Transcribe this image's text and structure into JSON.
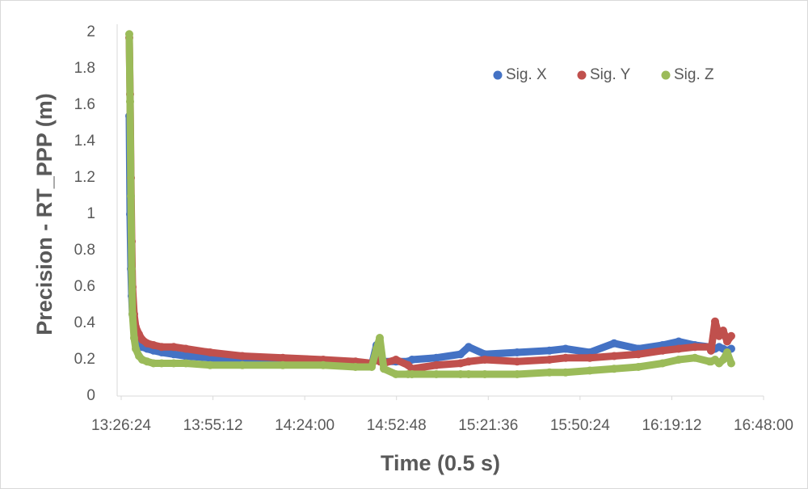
{
  "chart_data": {
    "type": "scatter",
    "x_label": "Time (0.5 s)",
    "y_label": "Precision - RT_PPP (m)",
    "x": [
      48536,
      48551,
      48567,
      48582,
      48597,
      48627,
      48658,
      48719,
      48780,
      48871,
      48993,
      49145,
      49373,
      49601,
      50058,
      50666,
      51427,
      52188,
      52796,
      53101,
      53192,
      53253,
      53329,
      53557,
      53785,
      53861,
      54318,
      54774,
      54926,
      55231,
      55839,
      56448,
      56752,
      57209,
      57665,
      58122,
      58578,
      58882,
      59187,
      59461,
      59491,
      59567,
      59643,
      59719,
      59795,
      59871
    ],
    "series": [
      {
        "name": "Sig. X",
        "color": "#4472c4",
        "values": [
          1.54,
          1.0,
          0.7,
          0.55,
          0.45,
          0.37,
          0.32,
          0.29,
          0.27,
          0.26,
          0.25,
          0.24,
          0.23,
          0.22,
          0.21,
          0.2,
          0.19,
          0.18,
          0.18,
          0.17,
          0.28,
          0.22,
          0.19,
          0.19,
          0.19,
          0.2,
          0.21,
          0.23,
          0.27,
          0.23,
          0.24,
          0.25,
          0.26,
          0.24,
          0.29,
          0.26,
          0.28,
          0.3,
          0.28,
          0.27,
          0.25,
          0.26,
          0.27,
          0.26,
          0.25,
          0.26
        ]
      },
      {
        "name": "Sig. Y",
        "color": "#c0504d",
        "values": [
          1.97,
          1.66,
          1.2,
          0.85,
          0.6,
          0.45,
          0.38,
          0.34,
          0.31,
          0.29,
          0.28,
          0.27,
          0.27,
          0.26,
          0.24,
          0.22,
          0.21,
          0.2,
          0.19,
          0.18,
          0.2,
          0.19,
          0.18,
          0.2,
          0.17,
          0.15,
          0.17,
          0.18,
          0.19,
          0.2,
          0.19,
          0.2,
          0.21,
          0.21,
          0.22,
          0.23,
          0.25,
          0.26,
          0.27,
          0.27,
          0.25,
          0.41,
          0.33,
          0.36,
          0.3,
          0.33
        ]
      },
      {
        "name": "Sig. Z",
        "color": "#9bbb59",
        "values": [
          1.99,
          1.62,
          1.1,
          0.7,
          0.45,
          0.32,
          0.26,
          0.22,
          0.2,
          0.19,
          0.18,
          0.18,
          0.18,
          0.18,
          0.17,
          0.17,
          0.17,
          0.17,
          0.16,
          0.16,
          0.26,
          0.32,
          0.15,
          0.12,
          0.12,
          0.12,
          0.12,
          0.12,
          0.12,
          0.12,
          0.12,
          0.13,
          0.13,
          0.14,
          0.15,
          0.16,
          0.18,
          0.2,
          0.21,
          0.19,
          0.19,
          0.2,
          0.18,
          0.2,
          0.24,
          0.18
        ]
      }
    ],
    "xlim": [
      48384,
      60480
    ],
    "xticks": [
      {
        "value": 48384,
        "label": "13:26:24"
      },
      {
        "value": 50112,
        "label": "13:55:12"
      },
      {
        "value": 51840,
        "label": "14:24:00"
      },
      {
        "value": 53568,
        "label": "14:52:48"
      },
      {
        "value": 55296,
        "label": "15:21:36"
      },
      {
        "value": 57024,
        "label": "15:50:24"
      },
      {
        "value": 58752,
        "label": "16:19:12"
      },
      {
        "value": 60480,
        "label": "16:48:00"
      }
    ],
    "ylim": [
      0,
      2
    ],
    "yticks": [
      0,
      0.2,
      0.4,
      0.6,
      0.8,
      1,
      1.2,
      1.4,
      1.6,
      1.8,
      2
    ],
    "legend": "upper right",
    "grid": false
  }
}
